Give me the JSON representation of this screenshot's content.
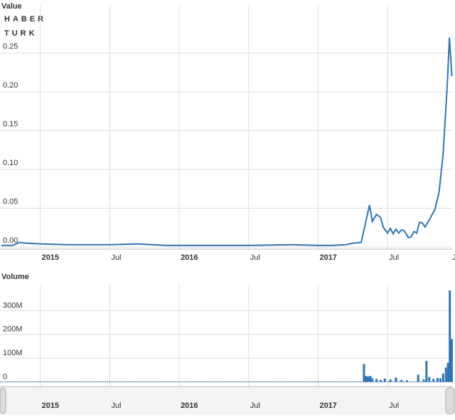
{
  "chart_data": [
    {
      "type": "line",
      "title": "Value",
      "color": "#2e75b6",
      "watermark": [
        "HABER",
        "TURK"
      ],
      "x": [
        2014.72,
        2014.8,
        2014.85,
        2014.9,
        2015.0,
        2015.2,
        2015.5,
        2015.7,
        2015.9,
        2016.2,
        2016.5,
        2016.8,
        2017.0,
        2017.1,
        2017.2,
        2017.25,
        2017.31,
        2017.37,
        2017.39,
        2017.42,
        2017.45,
        2017.47,
        2017.5,
        2017.52,
        2017.54,
        2017.56,
        2017.58,
        2017.6,
        2017.62,
        2017.65,
        2017.67,
        2017.69,
        2017.71,
        2017.73,
        2017.75,
        2017.77,
        2017.8,
        2017.84,
        2017.87,
        2017.9,
        2017.93,
        2017.945,
        2017.963
      ],
      "values": [
        0.002,
        0.002,
        0.006,
        0.005,
        0.004,
        0.003,
        0.003,
        0.004,
        0.002,
        0.002,
        0.002,
        0.003,
        0.002,
        0.002,
        0.003,
        0.005,
        0.006,
        0.054,
        0.033,
        0.042,
        0.038,
        0.025,
        0.018,
        0.024,
        0.017,
        0.023,
        0.018,
        0.022,
        0.021,
        0.012,
        0.013,
        0.02,
        0.018,
        0.032,
        0.031,
        0.026,
        0.035,
        0.048,
        0.07,
        0.12,
        0.21,
        0.27,
        0.22
      ],
      "xlim": [
        2014.71,
        2017.97
      ],
      "ylim": [
        0,
        0.3
      ],
      "xticks": [
        {
          "value": 2015,
          "label": "2015"
        },
        {
          "value": 2015.5,
          "label": "Jul"
        },
        {
          "value": 2016,
          "label": "2016"
        },
        {
          "value": 2016.5,
          "label": "Jul"
        },
        {
          "value": 2017,
          "label": "2017"
        },
        {
          "value": 2017.5,
          "label": "Jul"
        },
        {
          "value": 2018,
          "label": "J"
        }
      ],
      "yticks": [
        {
          "value": 0,
          "label": "0.00"
        },
        0.05,
        {
          "value": 0.1,
          "label": "0.10"
        },
        0.15,
        {
          "value": 0.2,
          "label": "0.20"
        },
        0.25
      ],
      "grid": true
    },
    {
      "type": "bar",
      "title": "Volume",
      "color": "#2e75b6",
      "x": [
        2017.33,
        2017.345,
        2017.36,
        2017.375,
        2017.39,
        2017.42,
        2017.45,
        2017.48,
        2017.52,
        2017.56,
        2017.6,
        2017.64,
        2017.72,
        2017.76,
        2017.78,
        2017.8,
        2017.83,
        2017.86,
        2017.88,
        2017.9,
        2017.92,
        2017.935,
        2017.948,
        2017.962
      ],
      "values": [
        75000000,
        25000000,
        22000000,
        25000000,
        15000000,
        12000000,
        8000000,
        14000000,
        10000000,
        18000000,
        8000000,
        6000000,
        30000000,
        10000000,
        88000000,
        20000000,
        12000000,
        16000000,
        15000000,
        35000000,
        60000000,
        80000000,
        385000000,
        180000000
      ],
      "xlim": [
        2014.71,
        2017.97
      ],
      "ylim": [
        -20000000,
        400000000
      ],
      "xticks": [
        {
          "value": 2015,
          "label": "2015"
        },
        {
          "value": 2015.5,
          "label": "Jul"
        },
        {
          "value": 2016,
          "label": "2016"
        },
        {
          "value": 2016.5,
          "label": "Jul"
        },
        {
          "value": 2017,
          "label": "2017"
        },
        {
          "value": 2017.5,
          "label": "Jul"
        }
      ],
      "yticks": [
        0,
        {
          "value": 100000000,
          "label": "100M"
        },
        {
          "value": 200000000,
          "label": "200M"
        },
        {
          "value": 300000000,
          "label": "300M"
        }
      ],
      "grid": true
    }
  ]
}
